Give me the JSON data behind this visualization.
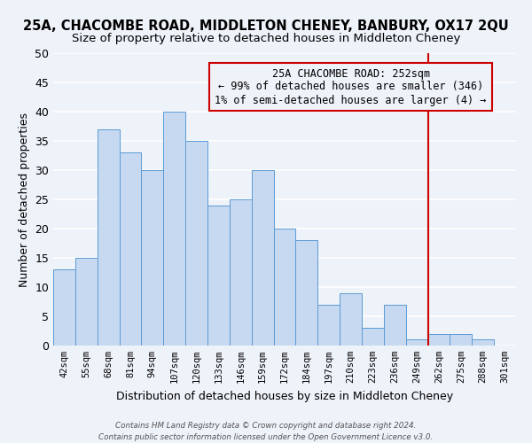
{
  "title": "25A, CHACOMBE ROAD, MIDDLETON CHENEY, BANBURY, OX17 2QU",
  "subtitle": "Size of property relative to detached houses in Middleton Cheney",
  "xlabel": "Distribution of detached houses by size in Middleton Cheney",
  "ylabel": "Number of detached properties",
  "bin_labels": [
    "42sqm",
    "55sqm",
    "68sqm",
    "81sqm",
    "94sqm",
    "107sqm",
    "120sqm",
    "133sqm",
    "146sqm",
    "159sqm",
    "172sqm",
    "184sqm",
    "197sqm",
    "210sqm",
    "223sqm",
    "236sqm",
    "249sqm",
    "262sqm",
    "275sqm",
    "288sqm",
    "301sqm"
  ],
  "bar_heights": [
    13,
    15,
    37,
    33,
    30,
    40,
    35,
    24,
    25,
    30,
    20,
    18,
    7,
    9,
    3,
    7,
    1,
    2,
    2,
    1,
    0
  ],
  "bar_color": "#c7d9f0",
  "bar_edge_color": "#5b9bd5",
  "ylim": [
    0,
    50
  ],
  "yticks": [
    0,
    5,
    10,
    15,
    20,
    25,
    30,
    35,
    40,
    45,
    50
  ],
  "vline_x_index": 16.5,
  "vline_color": "#cc0000",
  "annotation_box_text": "25A CHACOMBE ROAD: 252sqm\n← 99% of detached houses are smaller (346)\n1% of semi-detached houses are larger (4) →",
  "annotation_fontsize": 8.5,
  "footer_text": "Contains HM Land Registry data © Crown copyright and database right 2024.\nContains public sector information licensed under the Open Government Licence v3.0.",
  "background_color": "#eef2f9",
  "grid_color": "#ffffff",
  "title_fontsize": 10.5,
  "subtitle_fontsize": 9.5,
  "ylabel_fontsize": 9,
  "xlabel_fontsize": 9
}
